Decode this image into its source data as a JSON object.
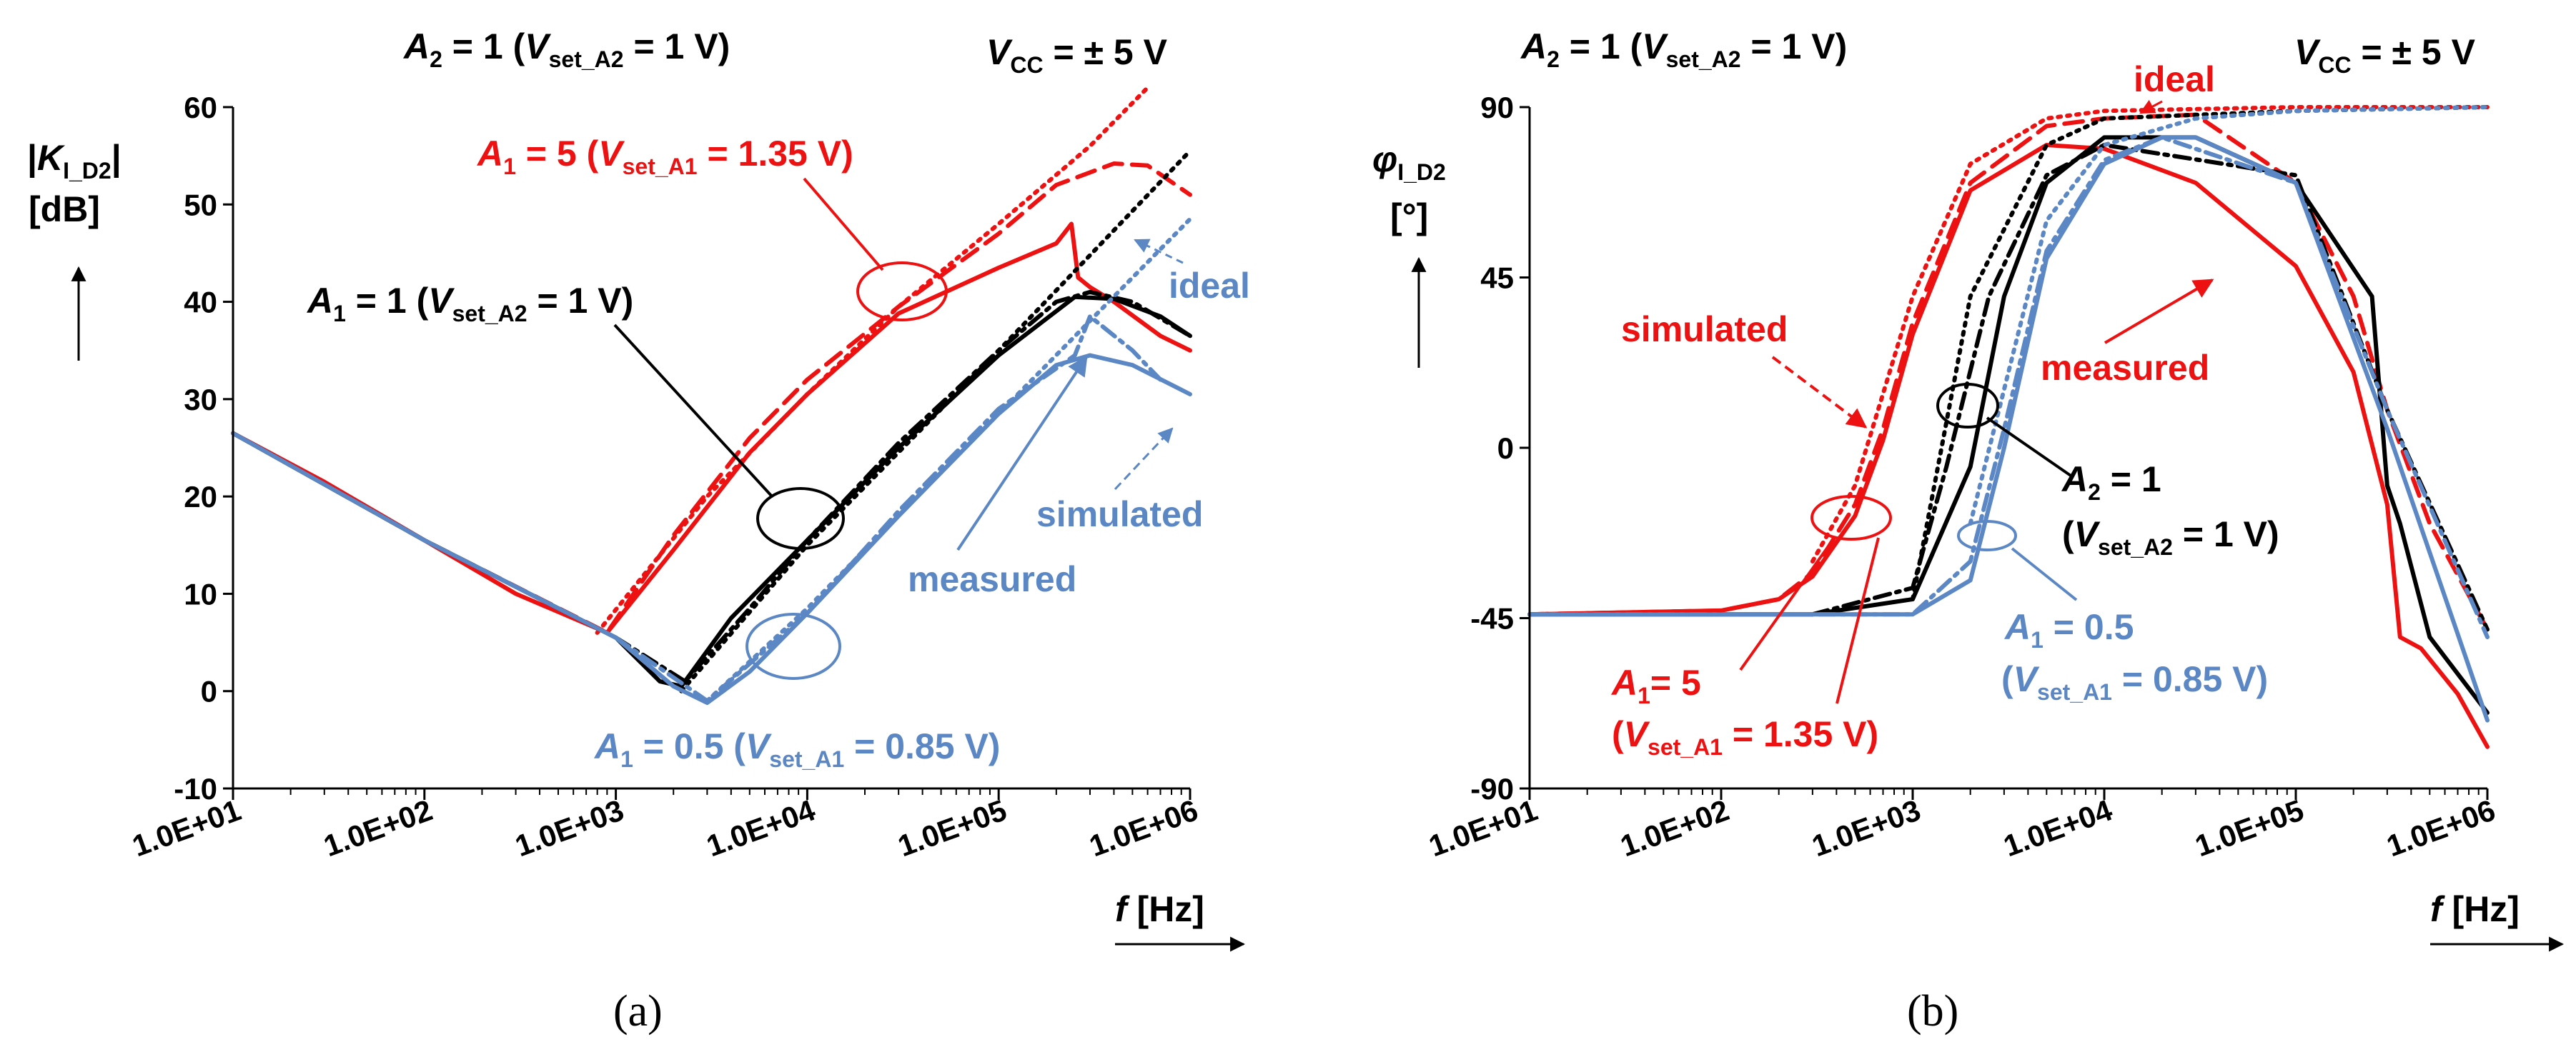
{
  "chart_data": [
    {
      "panel": "a",
      "type": "line",
      "x_scale": "log",
      "xlim": [
        10,
        1000000
      ],
      "ylim": [
        -10,
        60
      ],
      "title_left_parts": [
        "A",
        "2",
        " = 1 (",
        "V",
        "set_A2",
        " = 1 V)"
      ],
      "title_right_parts": [
        "V",
        "CC",
        " = ± 5 V"
      ],
      "ylabel_parts": [
        "|",
        "K",
        "I_D2",
        "|",
        "[dB]"
      ],
      "xlabel_parts": [
        "f",
        " [Hz]"
      ],
      "x_ticks": [
        10,
        100,
        1000,
        10000,
        100000,
        1000000
      ],
      "x_tick_labels": [
        "1.0E+01",
        "1.0E+02",
        "1.0E+03",
        "1.0E+04",
        "1.0E+05",
        "1.0E+06"
      ],
      "y_ticks": [
        -10,
        0,
        10,
        20,
        30,
        40,
        50,
        60
      ],
      "y_tick_labels": [
        "-10",
        "0",
        "10",
        "20",
        "30",
        "40",
        "50",
        "60"
      ],
      "annotations": {
        "red_label": [
          "A",
          "1",
          " = 5 (",
          "V",
          "set_A1",
          " = 1.35 V)"
        ],
        "black_label": [
          "A",
          "1",
          " = 1 (",
          "V",
          "set_A2",
          " = 1 V)"
        ],
        "blue_label": [
          "A",
          "1",
          " = 0.5 (",
          "V",
          "set_A1",
          " = 0.85 V)"
        ],
        "ideal": "ideal",
        "simulated": "simulated",
        "measured": "measured"
      },
      "series": [
        {
          "name": "A1 = 5 measured",
          "color": "#ee1111",
          "style": "solid",
          "x": [
            10,
            30,
            100,
            300,
            900,
            2000,
            5000,
            10000,
            30000,
            100000,
            200000,
            240000,
            260000,
            300000,
            400000,
            700000,
            1000000
          ],
          "y": [
            26.5,
            21.5,
            15.5,
            10,
            6,
            14.5,
            24.5,
            30.5,
            38.8,
            43.5,
            46,
            48,
            42.5,
            41.5,
            40,
            36.5,
            35
          ]
        },
        {
          "name": "A1 = 5 simulated",
          "color": "#ee1111",
          "style": "dashed",
          "x": [
            10,
            100,
            900,
            2000,
            5000,
            10000,
            30000,
            100000,
            200000,
            400000,
            600000,
            1000000
          ],
          "y": [
            26.5,
            15.5,
            6,
            16,
            26,
            32,
            39.5,
            47,
            52,
            54.2,
            54,
            51
          ]
        },
        {
          "name": "A1 = 5 ideal",
          "color": "#ee1111",
          "style": "dotted",
          "x": [
            800,
            3000,
            10000,
            30000,
            100000,
            300000,
            600000
          ],
          "y": [
            6,
            20,
            30.5,
            39.5,
            48,
            56,
            62
          ]
        },
        {
          "name": "A1 = 1 measured",
          "color": "#000000",
          "style": "solid",
          "x": [
            10,
            100,
            1000,
            1700,
            2200,
            4000,
            10000,
            30000,
            100000,
            250000,
            400000,
            700000,
            1000000
          ],
          "y": [
            26.5,
            15.5,
            5.5,
            1,
            0.5,
            7.5,
            15.5,
            25,
            34.5,
            40.5,
            40.3,
            38.5,
            36.5
          ]
        },
        {
          "name": "A1 = 1 simulated",
          "color": "#000000",
          "style": "dashdot",
          "x": [
            1000,
            2300,
            5000,
            10000,
            30000,
            100000,
            200000,
            300000,
            500000,
            1000000
          ],
          "y": [
            5.5,
            1,
            8.5,
            15.5,
            25.5,
            35,
            40,
            41,
            40,
            36.5
          ]
        },
        {
          "name": "A1 = 1 ideal",
          "color": "#000000",
          "style": "dotted",
          "x": [
            2200,
            10000,
            100000,
            1000000
          ],
          "y": [
            0,
            15,
            35,
            55.5
          ]
        },
        {
          "name": "A1 = 0.5 measured",
          "color": "#5b87c5",
          "style": "solid",
          "x": [
            10,
            100,
            1000,
            2000,
            3000,
            5000,
            10000,
            30000,
            100000,
            200000,
            300000,
            500000,
            1000000
          ],
          "y": [
            26.5,
            15.5,
            5.5,
            0.5,
            -1.2,
            2,
            8,
            18,
            28.5,
            33.5,
            34.5,
            33.5,
            30.5
          ]
        },
        {
          "name": "A1 = 0.5 simulated",
          "color": "#5b87c5",
          "style": "dashdot",
          "x": [
            1000,
            3000,
            10000,
            30000,
            100000,
            250000,
            300000,
            500000,
            700000
          ],
          "y": [
            5.5,
            -1,
            8,
            18.5,
            29,
            34.5,
            38.5,
            35,
            32
          ]
        },
        {
          "name": "A1 = 0.5 ideal",
          "color": "#5b87c5",
          "style": "dotted",
          "x": [
            3000,
            10000,
            100000,
            1000000
          ],
          "y": [
            -1,
            8.5,
            28.5,
            48.5
          ]
        }
      ]
    },
    {
      "panel": "b",
      "type": "line",
      "x_scale": "log",
      "xlim": [
        10,
        1000000
      ],
      "ylim": [
        -90,
        90
      ],
      "title_left_parts": [
        "A",
        "2",
        " = 1 (",
        "V",
        "set_A2",
        " = 1 V)"
      ],
      "title_right_parts": [
        "V",
        "CC",
        " = ± 5 V"
      ],
      "ylabel_parts": [
        "φ",
        "I_D2",
        "[°]"
      ],
      "xlabel_parts": [
        "f",
        " [Hz]"
      ],
      "x_ticks": [
        10,
        100,
        1000,
        10000,
        100000,
        1000000
      ],
      "x_tick_labels": [
        "1.0E+01",
        "1.0E+02",
        "1.0E+03",
        "1.0E+04",
        "1.0E+05",
        "1.0E+06"
      ],
      "y_ticks": [
        -90,
        -45,
        0,
        45,
        90
      ],
      "y_tick_labels": [
        "-90",
        "-45",
        "0",
        "45",
        "90"
      ],
      "annotations": {
        "ideal": "ideal",
        "simulated": "simulated",
        "measured": "measured",
        "black_label_line1": [
          "A",
          "2",
          " = 1"
        ],
        "black_label_line2": [
          "(",
          "V",
          "set_A2",
          " = 1 V)"
        ],
        "red_label_line1": [
          "A",
          "1",
          "= 5"
        ],
        "red_label_line2": [
          "(",
          "V",
          "set_A1",
          " = 1.35 V)"
        ],
        "blue_label_line1": [
          "A",
          "1",
          " = 0.5"
        ],
        "blue_label_line2": [
          "(",
          "V",
          "set_A1",
          " = 0.85 V)"
        ]
      },
      "series": [
        {
          "name": "A1 = 5 measured",
          "color": "#ee1111",
          "style": "solid",
          "x": [
            10,
            100,
            200,
            300,
            500,
            700,
            1000,
            2000,
            5000,
            10000,
            30000,
            100000,
            200000,
            300000,
            350000,
            450000,
            700000,
            1000000
          ],
          "y": [
            -44,
            -43,
            -40,
            -34,
            -18,
            2,
            30,
            68,
            80,
            79,
            70,
            48,
            20,
            -15,
            -50,
            -53,
            -65,
            -79
          ]
        },
        {
          "name": "A1 = 5 simulated",
          "color": "#ee1111",
          "style": "dashed",
          "x": [
            10,
            100,
            200,
            300,
            500,
            700,
            1000,
            2000,
            5000,
            10000,
            30000,
            100000,
            200000,
            300000,
            500000,
            1000000
          ],
          "y": [
            -44,
            -43,
            -40,
            -33,
            -15,
            5,
            33,
            70,
            85,
            87,
            88,
            70,
            40,
            10,
            -20,
            -48
          ]
        },
        {
          "name": "A1 = 5 ideal",
          "color": "#ee1111",
          "style": "dotted",
          "x": [
            300,
            500,
            1000,
            2000,
            5000,
            10000,
            100000,
            1000000
          ],
          "y": [
            -30,
            -10,
            40,
            75,
            87,
            89,
            90,
            90
          ]
        },
        {
          "name": "A1 = 1 measured",
          "color": "#000000",
          "style": "solid",
          "x": [
            10,
            300,
            1000,
            2000,
            3000,
            5000,
            10000,
            30000,
            100000,
            250000,
            300000,
            350000,
            500000,
            1000000
          ],
          "y": [
            -44,
            -44,
            -40,
            -5,
            40,
            70,
            82,
            82,
            70,
            40,
            -10,
            -20,
            -50,
            -70
          ]
        },
        {
          "name": "A1 = 1 simulated",
          "color": "#000000",
          "style": "dashdot",
          "x": [
            300,
            1000,
            1500,
            2500,
            5000,
            10000,
            100000,
            300000,
            1000000
          ],
          "y": [
            -44,
            -37,
            -5,
            40,
            72,
            80,
            72,
            10,
            -48
          ]
        },
        {
          "name": "A1 = 1 ideal",
          "color": "#000000",
          "style": "dotted",
          "x": [
            1000,
            2000,
            5000,
            10000,
            100000,
            1000000
          ],
          "y": [
            -40,
            40,
            80,
            87,
            89,
            90
          ]
        },
        {
          "name": "A1 = 0.5 measured",
          "color": "#5b87c5",
          "style": "solid",
          "x": [
            10,
            1000,
            2000,
            3000,
            5000,
            10000,
            20000,
            30000,
            100000,
            300000,
            1000000
          ],
          "y": [
            -44,
            -44,
            -35,
            0,
            50,
            75,
            82,
            82,
            70,
            5,
            -72
          ]
        },
        {
          "name": "A1 = 0.5 simulated",
          "color": "#5b87c5",
          "style": "dashdot",
          "x": [
            10,
            1000,
            2000,
            3000,
            5000,
            10000,
            20000,
            100000,
            300000,
            1000000
          ],
          "y": [
            -44,
            -44,
            -30,
            5,
            52,
            76,
            82,
            70,
            10,
            -50
          ]
        },
        {
          "name": "A1 = 0.5 ideal",
          "color": "#5b87c5",
          "style": "dotted",
          "x": [
            2000,
            5000,
            10000,
            30000,
            100000,
            1000000
          ],
          "y": [
            -20,
            60,
            80,
            87,
            89,
            90
          ]
        }
      ]
    }
  ],
  "captions": [
    "(a)",
    "(b)"
  ]
}
